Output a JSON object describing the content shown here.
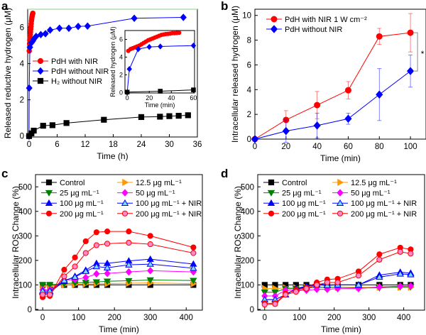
{
  "chart_data": [
    {
      "panel": "a",
      "type": "scatter",
      "xlabel": "Time (h)",
      "ylabel": "Released reductive hydrogen (μM)",
      "xlim": [
        -0.3,
        36
      ],
      "ylim": [
        -0.05,
        7.0
      ],
      "xticks": [
        "0",
        "6",
        "12",
        "18",
        "24",
        "30",
        "36"
      ],
      "xtick_values": [
        0,
        6,
        12,
        18,
        24,
        30,
        36
      ],
      "yticks": [
        "0",
        "2",
        "4",
        "6"
      ],
      "ytick_values": [
        0,
        2,
        4,
        6
      ],
      "legend": "middle-left",
      "series": [
        {
          "name": "PdH with NIR",
          "color": "#ff0000",
          "marker": "circle",
          "x": [
            0.03,
            0.1,
            0.15,
            0.2,
            0.25,
            0.3,
            0.35,
            0.4,
            0.45,
            0.5,
            0.55,
            0.6,
            0.65,
            0.7,
            0.75,
            0.8
          ],
          "y": [
            4.7,
            5.1,
            5.3,
            5.45,
            5.6,
            5.75,
            5.9,
            6.05,
            6.2,
            6.35,
            6.45,
            6.55,
            6.62,
            6.7,
            6.74,
            6.78
          ]
        },
        {
          "name": "PdH without NIR",
          "color": "#0000ff",
          "marker": "diamond",
          "x": [
            0,
            0.03,
            0.17,
            0.5,
            0.8,
            1,
            1.5,
            2.5,
            3.5,
            4.5,
            6.5,
            8.5,
            10.5,
            12.5,
            22.5,
            33
          ],
          "y": [
            0,
            2.65,
            4.9,
            5.15,
            5.25,
            5.35,
            5.5,
            5.6,
            5.65,
            5.85,
            5.95,
            5.95,
            6.05,
            6.07,
            6.5,
            6.55
          ]
        },
        {
          "name": "H₂ without NIR",
          "color": "#000000",
          "marker": "square",
          "x": [
            0,
            0.5,
            1,
            3,
            5,
            8,
            16,
            24,
            28,
            30,
            32,
            34
          ],
          "y": [
            0,
            0.15,
            0.3,
            0.57,
            0.6,
            0.72,
            0.9,
            1.05,
            1.07,
            1.1,
            1.12,
            1.15
          ]
        }
      ],
      "inset": {
        "xlabel": "Time (min)",
        "ylabel": "Released hydrogen (μM)",
        "xlim": [
          -2,
          61
        ],
        "ylim": [
          -0.05,
          7.0
        ],
        "xticks": [
          "0",
          "20",
          "40",
          "60"
        ],
        "xtick_values": [
          0,
          20,
          40,
          60
        ],
        "yticks": [
          "0",
          "2",
          "4",
          "6"
        ],
        "ytick_values": [
          0,
          2,
          4,
          6
        ],
        "series": [
          {
            "color": "#ff0000",
            "marker": "circle",
            "x": [
              1,
              3,
              5,
              7,
              9,
              11,
              13,
              15,
              17,
              19,
              21,
              23,
              25,
              27,
              29,
              31,
              33,
              35,
              37,
              39,
              41,
              43,
              45,
              47
            ],
            "y": [
              4.7,
              4.9,
              5.0,
              5.1,
              5.2,
              5.3,
              5.45,
              5.6,
              5.75,
              5.9,
              6.0,
              6.1,
              6.2,
              6.3,
              6.4,
              6.5,
              6.55,
              6.6,
              6.62,
              6.65,
              6.7,
              6.7,
              6.72,
              6.75
            ]
          },
          {
            "color": "#0000ff",
            "marker": "diamond",
            "x": [
              0,
              2,
              10,
              20,
              30,
              60
            ],
            "y": [
              0,
              2.65,
              4.9,
              5.15,
              5.2,
              5.3
            ]
          },
          {
            "color": "#000000",
            "marker": "square",
            "x": [
              0,
              30,
              60
            ],
            "y": [
              0.05,
              0.15,
              0.3
            ]
          }
        ]
      }
    },
    {
      "panel": "b",
      "type": "line",
      "xlabel": "Time (min)",
      "ylabel": "Intracellular released hydrogen (μM)",
      "xlim": [
        0,
        110
      ],
      "ylim": [
        0,
        10.5
      ],
      "xticks": [
        "0",
        "20",
        "40",
        "60",
        "80",
        "100"
      ],
      "xtick_values": [
        0,
        20,
        40,
        60,
        80,
        100
      ],
      "yticks": [
        "0",
        "2",
        "4",
        "6",
        "8",
        "10"
      ],
      "ytick_values": [
        0,
        2,
        4,
        6,
        8,
        10
      ],
      "legend": "top-left",
      "annotation": "*",
      "series": [
        {
          "name": "PdH with NIR 1 W cm⁻²",
          "color": "#ff0000",
          "marker": "circle",
          "x": [
            0,
            20,
            40,
            60,
            80,
            100
          ],
          "y": [
            0,
            1.55,
            2.75,
            3.95,
            8.3,
            8.6
          ],
          "err": [
            0,
            0.75,
            1.1,
            0.7,
            0.65,
            1.55
          ]
        },
        {
          "name": "PdH without NIR",
          "color": "#0000ff",
          "marker": "diamond",
          "x": [
            0,
            20,
            40,
            60,
            80,
            100
          ],
          "y": [
            0,
            0.65,
            1.1,
            1.65,
            3.6,
            5.5
          ],
          "err": [
            0,
            0.9,
            1.0,
            0.45,
            2.1,
            1.3
          ]
        }
      ]
    },
    {
      "panel": "c",
      "type": "line",
      "xlabel": "Time (min)",
      "ylabel": "Intracellular ROS Change (%)",
      "xlim": [
        -20,
        445
      ],
      "ylim": [
        -3,
        550
      ],
      "xticks": [
        "0",
        "100",
        "200",
        "300",
        "400"
      ],
      "xtick_values": [
        0,
        100,
        200,
        300,
        400
      ],
      "yticks": [
        "0",
        "100",
        "200",
        "300",
        "400",
        "500"
      ],
      "ytick_values": [
        0,
        100,
        200,
        300,
        400,
        500
      ],
      "legend": "top",
      "x": [
        0,
        20,
        60,
        90,
        120,
        150,
        180,
        240,
        300,
        420
      ],
      "series": [
        {
          "name": "Control",
          "color": "#000000",
          "fill": "#000000",
          "marker": "square",
          "y": [
            100,
            100,
            100,
            100,
            100,
            100,
            100,
            100,
            100,
            100
          ]
        },
        {
          "name": "12.5 μg mL⁻¹",
          "color": "#ff9900",
          "fill": "#ff9900",
          "marker": "tri-right",
          "y": [
            95,
            95,
            100,
            102,
            104,
            105,
            105,
            107,
            108,
            105
          ]
        },
        {
          "name": "25 μg mL⁻¹",
          "color": "#008000",
          "fill": "#008000",
          "marker": "tri-down",
          "y": [
            100,
            100,
            105,
            108,
            110,
            112,
            115,
            117,
            120,
            118
          ]
        },
        {
          "name": "50 μg mL⁻¹",
          "color": "#ff00ff",
          "fill": "#ff00ff",
          "marker": "diamond",
          "y": [
            80,
            80,
            120,
            122,
            130,
            145,
            147,
            153,
            158,
            153
          ]
        },
        {
          "name": "100 μg mL⁻¹",
          "color": "#0000ff",
          "fill": "#0000ff",
          "marker": "tri-up",
          "y": [
            70,
            70,
            115,
            135,
            160,
            188,
            188,
            198,
            205,
            185
          ]
        },
        {
          "name": "100 μg mL⁻¹ + NIR",
          "color": "#0000ff",
          "fill": "#80d8ff",
          "marker": "tri-up",
          "y": [
            75,
            75,
            118,
            132,
            155,
            175,
            170,
            182,
            185,
            168
          ]
        },
        {
          "name": "200 μg mL⁻¹",
          "color": "#ff0000",
          "fill": "#ff0000",
          "marker": "circle",
          "y": [
            50,
            55,
            162,
            212,
            278,
            315,
            318,
            318,
            300,
            253
          ]
        },
        {
          "name": "200 μg mL⁻¹ + NIR",
          "color": "#ff0000",
          "fill": "#ff88cc",
          "marker": "circle",
          "y": [
            60,
            60,
            135,
            175,
            230,
            262,
            268,
            272,
            266,
            230
          ]
        }
      ]
    },
    {
      "panel": "d",
      "type": "line",
      "xlabel": "Time (min)",
      "ylabel": "Intracellular ROS Change (%)",
      "xlim": [
        -20,
        460
      ],
      "ylim": [
        -3,
        550
      ],
      "xticks": [
        "0",
        "100",
        "200",
        "300",
        "400"
      ],
      "xtick_values": [
        0,
        100,
        200,
        300,
        400
      ],
      "yticks": [
        "0",
        "100",
        "200",
        "300",
        "400",
        "500"
      ],
      "ytick_values": [
        0,
        100,
        200,
        300,
        400,
        500
      ],
      "legend": "top",
      "x": [
        0,
        30,
        60,
        90,
        120,
        150,
        180,
        210,
        270,
        330,
        390,
        420
      ],
      "series": [
        {
          "name": "Control",
          "color": "#000000",
          "fill": "#000000",
          "marker": "square",
          "y": [
            100,
            100,
            100,
            100,
            100,
            100,
            100,
            100,
            100,
            100,
            100,
            100
          ]
        },
        {
          "name": "12.5 μg mL⁻¹",
          "color": "#ff9900",
          "fill": "#ff9900",
          "marker": "tri-right",
          "y": [
            85,
            85,
            88,
            88,
            90,
            90,
            90,
            90,
            90,
            90,
            90,
            90
          ]
        },
        {
          "name": "25 μg mL⁻¹",
          "color": "#008000",
          "fill": "#008000",
          "marker": "tri-down",
          "y": [
            70,
            70,
            85,
            85,
            88,
            90,
            90,
            90,
            88,
            88,
            92,
            92
          ]
        },
        {
          "name": "50 μg mL⁻¹",
          "color": "#ff00ff",
          "fill": "#ff00ff",
          "marker": "diamond",
          "y": [
            55,
            55,
            78,
            80,
            78,
            82,
            82,
            85,
            85,
            92,
            95,
            95
          ]
        },
        {
          "name": "100 μg mL⁻¹",
          "color": "#0000ff",
          "fill": "#0000ff",
          "marker": "tri-up",
          "y": [
            40,
            40,
            60,
            85,
            95,
            105,
            100,
            100,
            100,
            140,
            152,
            148
          ]
        },
        {
          "name": "100 μg mL⁻¹ + NIR",
          "color": "#0000ff",
          "fill": "#80d8ff",
          "marker": "tri-up",
          "y": [
            40,
            40,
            60,
            82,
            92,
            100,
            98,
            100,
            100,
            132,
            145,
            142
          ]
        },
        {
          "name": "200 μg mL⁻¹",
          "color": "#ff0000",
          "fill": "#ff0000",
          "marker": "circle",
          "y": [
            25,
            25,
            65,
            80,
            88,
            110,
            122,
            125,
            155,
            225,
            252,
            245
          ]
        },
        {
          "name": "200 μg mL⁻¹ + NIR",
          "color": "#ff0000",
          "fill": "#ff88cc",
          "marker": "circle",
          "y": [
            20,
            22,
            60,
            72,
            85,
            100,
            110,
            110,
            138,
            203,
            235,
            228
          ]
        }
      ]
    }
  ]
}
